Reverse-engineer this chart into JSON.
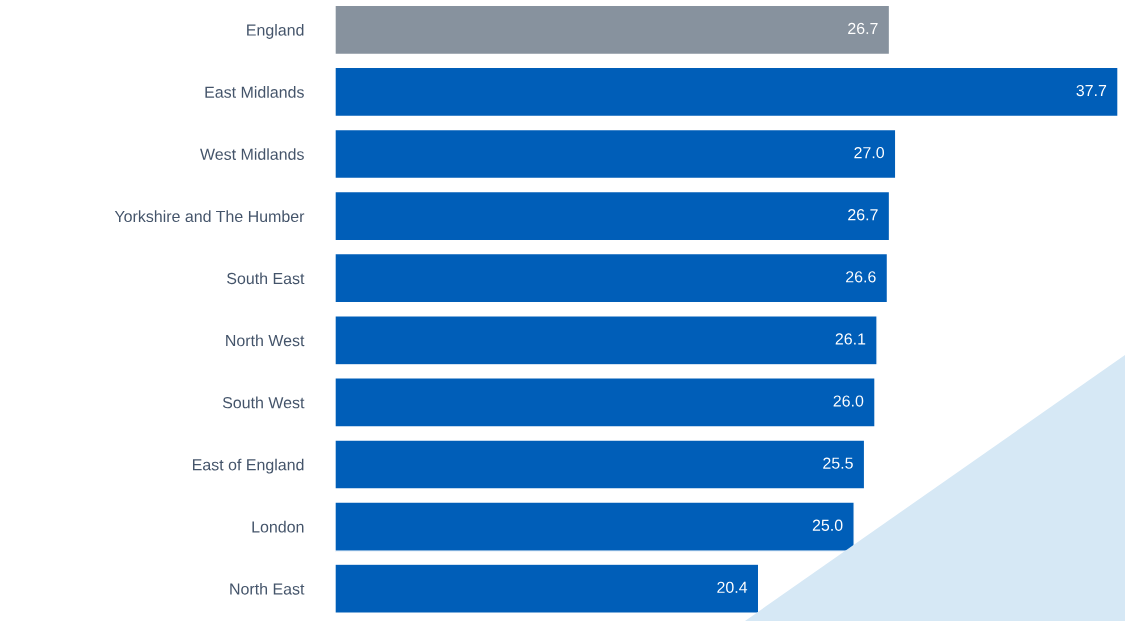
{
  "chart_data": {
    "type": "bar",
    "orientation": "horizontal",
    "categories": [
      "England",
      "East Midlands",
      "West Midlands",
      "Yorkshire and The Humber",
      "South East",
      "North West",
      "South West",
      "East of England",
      "London",
      "North East"
    ],
    "values": [
      26.7,
      37.7,
      27.0,
      26.7,
      26.6,
      26.1,
      26.0,
      25.5,
      25.0,
      20.4
    ],
    "colors": [
      "#87929e",
      "#005eb8",
      "#005eb8",
      "#005eb8",
      "#005eb8",
      "#005eb8",
      "#005eb8",
      "#005eb8",
      "#005eb8",
      "#005eb8"
    ],
    "value_labels": [
      "26.7",
      "37.7",
      "27.0",
      "26.7",
      "26.6",
      "26.1",
      "26.0",
      "25.5",
      "25.0",
      "20.4"
    ]
  }
}
